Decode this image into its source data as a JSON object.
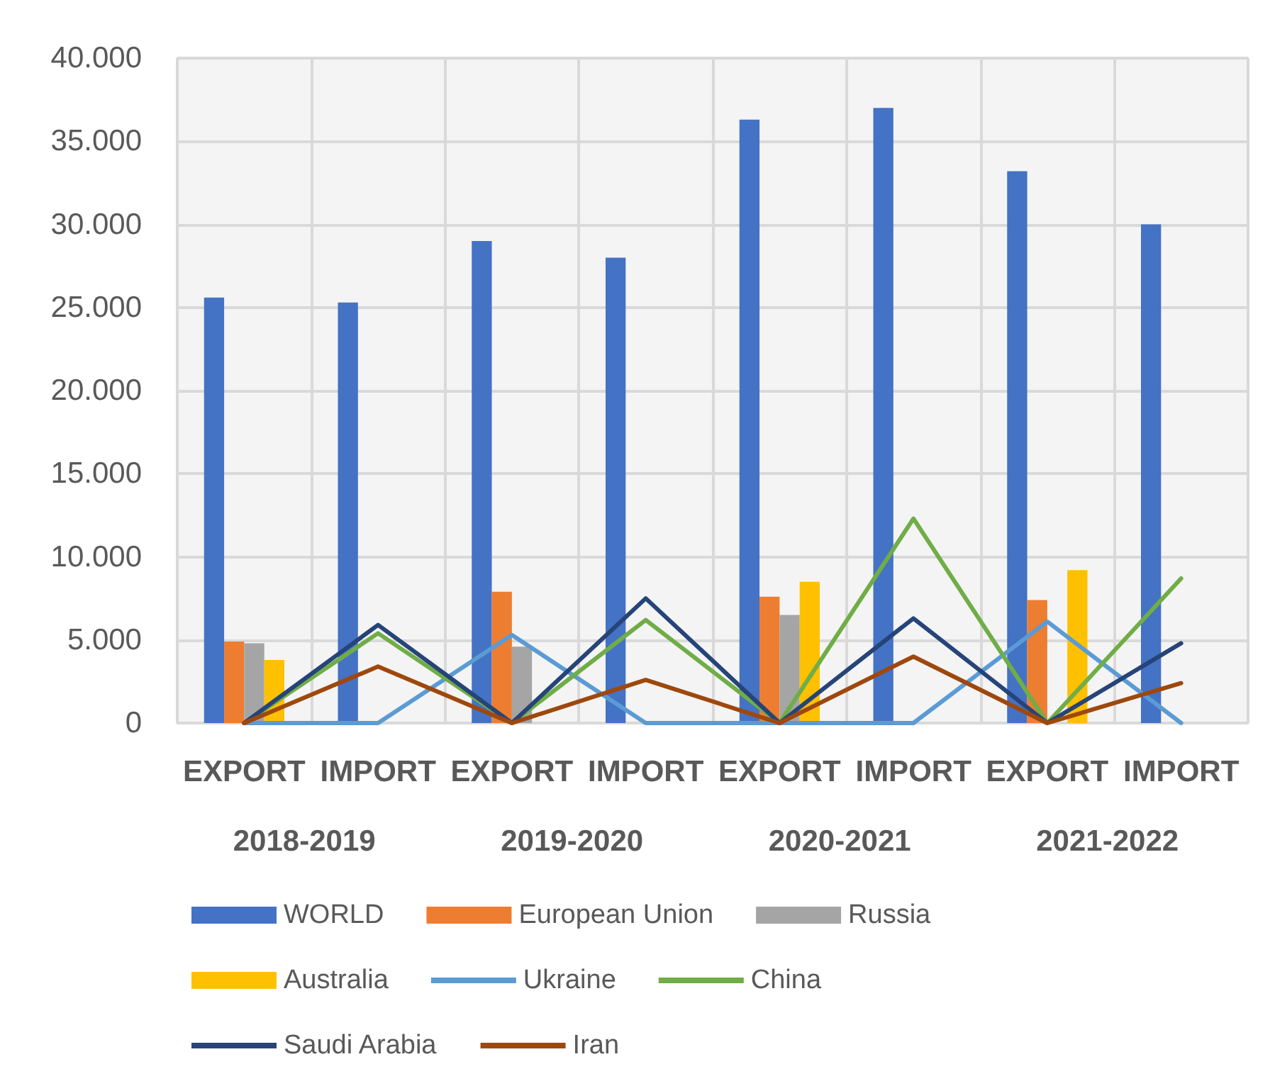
{
  "chart_data": {
    "type": "bar",
    "categories": [
      "EXPORT",
      "IMPORT",
      "EXPORT",
      "IMPORT",
      "EXPORT",
      "IMPORT",
      "EXPORT",
      "IMPORT"
    ],
    "annotations": [
      "2018-2019",
      "2019-2020",
      "2020-2021",
      "2021-2022"
    ],
    "ylim": [
      0,
      40000
    ],
    "yticks": [
      {
        "value": 0,
        "label": "0"
      },
      {
        "value": 5000,
        "label": "5.000"
      },
      {
        "value": 10000,
        "label": "10.000"
      },
      {
        "value": 15000,
        "label": "15.000"
      },
      {
        "value": 20000,
        "label": "20.000"
      },
      {
        "value": 25000,
        "label": "25.000"
      },
      {
        "value": 30000,
        "label": "30.000"
      },
      {
        "value": 35000,
        "label": "35.000"
      },
      {
        "value": 40000,
        "label": "40.000"
      }
    ],
    "grid": true,
    "legend": "bottom",
    "marker": "none",
    "line_style": "solid",
    "series": [
      {
        "name": "WORLD",
        "color": "#4472c4",
        "values": [
          25600,
          25300,
          29000,
          28000,
          36300,
          37000,
          33200,
          30000
        ]
      },
      {
        "name": "European Union",
        "color": "#ed7d31",
        "values": [
          4900,
          0,
          7900,
          0,
          7600,
          0,
          7400,
          0
        ]
      },
      {
        "name": "Russia",
        "color": "#a5a5a5",
        "values": [
          4800,
          0,
          4600,
          0,
          6500,
          0,
          0,
          0
        ]
      },
      {
        "name": "Australia",
        "color": "#ffc000",
        "values": [
          3800,
          0,
          0,
          0,
          8500,
          0,
          9200,
          0
        ]
      },
      {
        "name": "Ukraine",
        "type": "line",
        "color": "#5b9bd5",
        "values": [
          0,
          0,
          5300,
          0,
          0,
          0,
          6100,
          0
        ]
      },
      {
        "name": "China",
        "type": "line",
        "color": "#70ad47",
        "values": [
          0,
          5400,
          0,
          6200,
          0,
          12300,
          0,
          8700
        ]
      },
      {
        "name": "Saudi Arabia",
        "type": "line",
        "color": "#264478",
        "values": [
          0,
          5900,
          0,
          7500,
          0,
          6300,
          0,
          4800
        ]
      },
      {
        "name": "Iran",
        "type": "line",
        "color": "#9e480e",
        "values": [
          0,
          3400,
          0,
          2600,
          0,
          4000,
          0,
          2400
        ]
      }
    ]
  }
}
